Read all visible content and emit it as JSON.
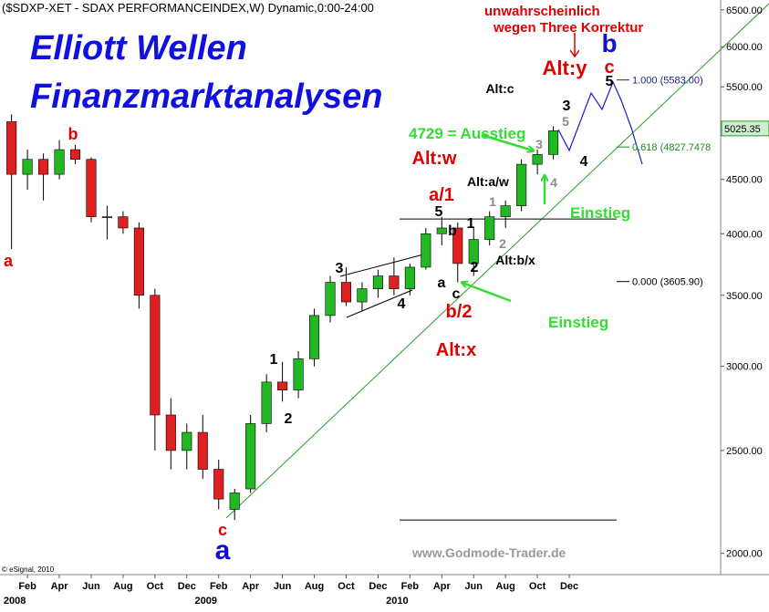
{
  "chart_data": {
    "type": "candlestick",
    "header": "($SDXP-XET - SDAX PERFORMANCEINDEX,W) Dynamic,0:00-24:00",
    "title": "Elliott Wellen",
    "subtitle": "Finanzmarktanalysen",
    "watermark": "www.Godmode-Trader.de",
    "copyright": "© eSignal, 2010",
    "categories": [
      null,
      "Feb",
      null,
      "Apr",
      null,
      "Jun",
      null,
      "Aug",
      null,
      "Oct",
      null,
      "Dec",
      null,
      "Feb",
      null,
      "Apr",
      null,
      "Jun",
      null,
      "Aug",
      null,
      "Oct",
      null,
      "Dec",
      null,
      "Feb",
      null,
      "Apr",
      null,
      "Jun",
      null,
      "Aug",
      null,
      "Oct",
      null,
      "Dec",
      null,
      null,
      null,
      null,
      null,
      null,
      null,
      null,
      null
    ],
    "year_labels": [
      "2008",
      null,
      null,
      null,
      null,
      null,
      null,
      null,
      null,
      null,
      null,
      null,
      "2009",
      null,
      null,
      null,
      null,
      null,
      null,
      null,
      null,
      null,
      null,
      null,
      "2010",
      null,
      null,
      null,
      null,
      null,
      null,
      null,
      null,
      null,
      null,
      null,
      null,
      null,
      null,
      null,
      null,
      null,
      null,
      null,
      null
    ],
    "open": [
      5100,
      4550,
      4700,
      4550,
      4800,
      4700,
      4150,
      4150,
      4050,
      3500,
      2700,
      2500,
      2600,
      2400,
      2200,
      2300,
      2650,
      2900,
      2850,
      3050,
      3350,
      3600,
      3450,
      3550,
      3650,
      3550,
      3720,
      4000,
      4050,
      3750,
      3950,
      4150,
      4250,
      4650,
      4750,
      null,
      null,
      null,
      null,
      null,
      null,
      null,
      null,
      null,
      null
    ],
    "high": [
      5180,
      4800,
      4760,
      4900,
      4850,
      4720,
      4250,
      4200,
      4100,
      3550,
      2800,
      2650,
      2700,
      2450,
      2300,
      2700,
      2950,
      3030,
      3100,
      3400,
      3650,
      3720,
      3600,
      3700,
      3800,
      3750,
      4050,
      4150,
      4100,
      4050,
      4200,
      4300,
      4700,
      4800,
      5050,
      null,
      null,
      null,
      null,
      null,
      null,
      null,
      null,
      null,
      null
    ],
    "low": [
      3870,
      4400,
      4300,
      4500,
      4650,
      4100,
      3950,
      4000,
      3400,
      2500,
      2400,
      2400,
      2350,
      2200,
      2150,
      2280,
      2600,
      2780,
      2800,
      3000,
      3300,
      3420,
      3380,
      3480,
      3500,
      3500,
      3700,
      3900,
      3600,
      3650,
      3900,
      4050,
      4200,
      4550,
      4700,
      null,
      null,
      null,
      null,
      null,
      null,
      null,
      null,
      null,
      null
    ],
    "close": [
      4550,
      4700,
      4550,
      4800,
      4700,
      4150,
      4150,
      4050,
      3500,
      2700,
      2500,
      2600,
      2400,
      2250,
      2280,
      2650,
      2900,
      2850,
      3050,
      3350,
      3600,
      3450,
      3550,
      3650,
      3550,
      3720,
      4000,
      4050,
      3750,
      3950,
      4150,
      4250,
      4650,
      4750,
      5000,
      null,
      null,
      null,
      null,
      null,
      null,
      null,
      null,
      null,
      null
    ],
    "up_color": "#22b822",
    "down_color": "#e02020",
    "log_scale": true,
    "ylim": [
      1910,
      6640
    ],
    "yticks": [
      {
        "value": 2000,
        "label": "2000.00"
      },
      {
        "value": 2500,
        "label": "2500.00"
      },
      {
        "value": 3000,
        "label": "3000.00"
      },
      {
        "value": 3500,
        "label": "3500.00"
      },
      {
        "value": 4000,
        "label": "4000.00"
      },
      {
        "value": 4500,
        "label": "4500.00"
      },
      {
        "value": 5500,
        "label": "5500.00"
      },
      {
        "value": 6000,
        "label": "6000.00"
      },
      {
        "value": 6500,
        "label": "6500.00"
      }
    ],
    "last_price": 5025.35,
    "fib_levels": [
      {
        "label": "1.000 (5583.00)",
        "value": 5583.0,
        "color": "#1a1a8c"
      },
      {
        "label": "0.618 (4827.7478",
        "value": 4827.7478,
        "color": "#1f8a1f"
      },
      {
        "label": "0.000 (3605.90)",
        "value": 3605.9,
        "color": "#000000"
      }
    ],
    "support_lines": [
      4130,
      2150
    ],
    "annotations": [
      {
        "text": "a",
        "color": "#e00000"
      },
      {
        "text": "b",
        "color": "#e00000"
      },
      {
        "text": "c",
        "color": "#e00000"
      },
      {
        "text": "a",
        "color": "#1010d0"
      },
      {
        "text": "1",
        "color": "#000000"
      },
      {
        "text": "2",
        "color": "#000000"
      },
      {
        "text": "3",
        "color": "#000000"
      },
      {
        "text": "4",
        "color": "#000000"
      },
      {
        "text": "5",
        "color": "#000000"
      },
      {
        "text": "b",
        "color": "#000000"
      },
      {
        "text": "a",
        "color": "#000000"
      },
      {
        "text": "c",
        "color": "#000000"
      },
      {
        "text": "1",
        "color": "#000000"
      },
      {
        "text": "2",
        "color": "#000000"
      },
      {
        "text": "a/1",
        "color": "#e00000"
      },
      {
        "text": "b/2",
        "color": "#e00000"
      },
      {
        "text": "Alt:x",
        "color": "#e00000"
      },
      {
        "text": "Alt:w",
        "color": "#e00000"
      },
      {
        "text": "Alt:a/w",
        "color": "#000000"
      },
      {
        "text": "Alt:b/x",
        "color": "#000000"
      },
      {
        "text": "Alt:c",
        "color": "#000000"
      },
      {
        "text": "Alt:y",
        "color": "#e00000"
      },
      {
        "text": "b",
        "color": "#1010d0"
      },
      {
        "text": "c",
        "color": "#e00000"
      },
      {
        "text": "5",
        "color": "#000000"
      },
      {
        "text": "3",
        "color": "#000000"
      },
      {
        "text": "5",
        "color": "#8c8c8c"
      },
      {
        "text": "3",
        "color": "#8c8c8c"
      },
      {
        "text": "4",
        "color": "#8c8c8c"
      },
      {
        "text": "1",
        "color": "#8c8c8c"
      },
      {
        "text": "2",
        "color": "#8c8c8c"
      },
      {
        "text": "4",
        "color": "#000000"
      },
      {
        "text": "4729 = Ausstieg",
        "color": "#33dd33"
      },
      {
        "text": "Einstieg",
        "color": "#33dd33"
      },
      {
        "text": "Einstieg",
        "color": "#33dd33"
      },
      {
        "text": "unwahrscheinlich",
        "color": "#e00000"
      },
      {
        "text": "wegen Three Korrektur",
        "color": "#e00000"
      }
    ]
  }
}
